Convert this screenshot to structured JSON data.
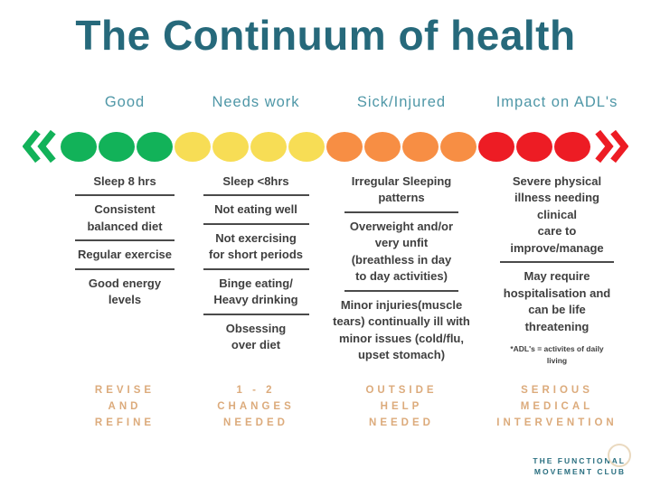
{
  "title": "The Continuum of health",
  "colors": {
    "title": "#26697b",
    "header": "#4f97a7",
    "green": "#12b259",
    "yellow": "#f7dd55",
    "orange": "#f78e44",
    "red": "#ed1c24",
    "label_text": "#dcab7c",
    "body_text": "#3f3f3f",
    "divider": "#4a4a4a",
    "logo_text": "#2a6f80",
    "logo_circle": "#ead9bf"
  },
  "scale": {
    "left_chevron": "double-chevron-left",
    "right_chevron": "double-chevron-right",
    "segments": [
      {
        "name": "green",
        "count": 3
      },
      {
        "name": "yellow",
        "count": 4
      },
      {
        "name": "orange",
        "count": 4
      },
      {
        "name": "red",
        "count": 3
      }
    ]
  },
  "columns": [
    {
      "header": "Good",
      "items": [
        "Sleep 8 hrs",
        "Consistent\nbalanced diet",
        "Regular exercise",
        "Good energy\nlevels"
      ],
      "label_lines": [
        "REVISE",
        "AND",
        "REFINE"
      ]
    },
    {
      "header": "Needs work",
      "items": [
        "Sleep <8hrs",
        "Not eating well",
        "Not exercising\nfor short periods",
        "Binge eating/\nHeavy drinking",
        "Obsessing\nover diet"
      ],
      "label_lines": [
        "1 - 2",
        "CHANGES",
        "NEEDED"
      ]
    },
    {
      "header": "Sick/Injured",
      "items": [
        "Irregular Sleeping\npatterns",
        "Overweight and/or\nvery unfit\n(breathless in day\nto day activities)",
        "Minor injuries(muscle\ntears) continually ill with\nminor issues (cold/flu,\nupset stomach)"
      ],
      "label_lines": [
        "OUTSIDE",
        "HELP",
        "NEEDED"
      ]
    },
    {
      "header": "Impact on ADL's",
      "items": [
        "Severe physical\nillness needing\nclinical\ncare to\nimprove/manage",
        "May require\nhospitalisation and\ncan be life\nthreatening"
      ],
      "footnote": "*ADL's = activites of daily\nliving",
      "label_lines": [
        "SERIOUS",
        "MEDICAL",
        "INTERVENTION"
      ]
    }
  ],
  "logo": {
    "line1": "THE FUNCTIONAL",
    "line2": "MOVEMENT CLUB"
  }
}
